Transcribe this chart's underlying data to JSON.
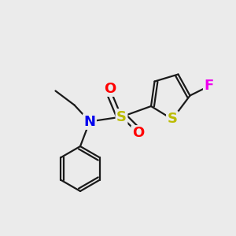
{
  "background_color": "#ebebeb",
  "bond_color": "#1a1a1a",
  "bond_width": 1.6,
  "atom_colors": {
    "N": "#0000ee",
    "S_sulfo": "#bbbb00",
    "S_thio": "#bbbb00",
    "O": "#ff0000",
    "F": "#ee00ee",
    "C": "#1a1a1a"
  },
  "figsize": [
    3.0,
    3.0
  ],
  "dpi": 100
}
